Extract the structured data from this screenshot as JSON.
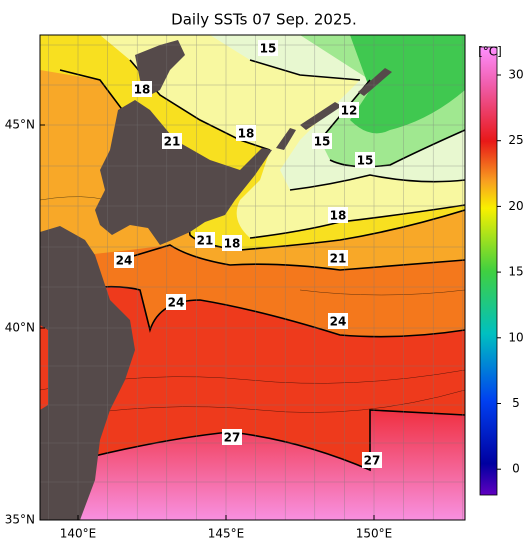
{
  "title": "Daily SSTs 07 Sep. 2025.",
  "lat_labels": [
    "45°N",
    "40°N",
    "35°N"
  ],
  "lon_labels": [
    "140°E",
    "145°E",
    "150°E"
  ],
  "colorbar": {
    "unit": "[°C]",
    "ticks": [
      30,
      25,
      20,
      15,
      10,
      5,
      0
    ]
  },
  "contour_labels": [
    "15",
    "18",
    "21",
    "18",
    "12",
    "15",
    "15",
    "18",
    "21",
    "18",
    "24",
    "21",
    "24",
    "24",
    "27",
    "27"
  ]
}
